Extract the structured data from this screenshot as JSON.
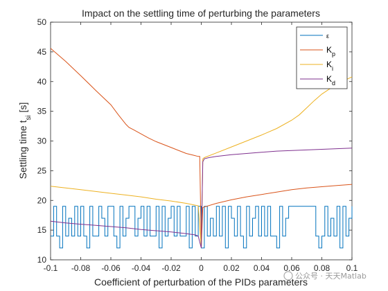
{
  "chart_data": {
    "type": "line",
    "title": "Impact on the settling time of perturbing the parameters",
    "xlabel": "Coefficient of perturbation of the PIDs parameters",
    "ylabel": "Settling time t",
    "ylabel_sub": "si",
    "ylabel_tail": " [s]",
    "xlim": [
      -0.1,
      0.1
    ],
    "ylim": [
      10,
      50
    ],
    "xticks": [
      -0.1,
      -0.08,
      -0.06,
      -0.04,
      -0.02,
      0,
      0.02,
      0.04,
      0.06,
      0.08,
      0.1
    ],
    "xtick_labels": [
      "-0.1",
      "-0.08",
      "-0.06",
      "-0.04",
      "-0.02",
      "0",
      "0.02",
      "0.04",
      "0.06",
      "0.08",
      "0.1"
    ],
    "yticks": [
      10,
      15,
      20,
      25,
      30,
      35,
      40,
      45,
      50
    ],
    "ytick_labels": [
      "10",
      "15",
      "20",
      "25",
      "30",
      "35",
      "40",
      "45",
      "50"
    ],
    "grid": false,
    "legend_position": "top-right",
    "series": [
      {
        "name": "ε",
        "color": "#0072BD",
        "x": [
          -0.1,
          -0.098,
          -0.096,
          -0.094,
          -0.092,
          -0.09,
          -0.088,
          -0.086,
          -0.084,
          -0.082,
          -0.08,
          -0.078,
          -0.076,
          -0.074,
          -0.072,
          -0.07,
          -0.068,
          -0.066,
          -0.064,
          -0.062,
          -0.06,
          -0.058,
          -0.056,
          -0.054,
          -0.052,
          -0.05,
          -0.048,
          -0.046,
          -0.044,
          -0.042,
          -0.04,
          -0.038,
          -0.036,
          -0.034,
          -0.032,
          -0.03,
          -0.028,
          -0.026,
          -0.024,
          -0.022,
          -0.02,
          -0.018,
          -0.016,
          -0.014,
          -0.012,
          -0.01,
          -0.008,
          -0.006,
          -0.004,
          -0.002,
          0,
          0.002,
          0.004,
          0.006,
          0.008,
          0.01,
          0.012,
          0.014,
          0.016,
          0.018,
          0.02,
          0.022,
          0.024,
          0.026,
          0.028,
          0.03,
          0.032,
          0.034,
          0.036,
          0.038,
          0.04,
          0.042,
          0.044,
          0.046,
          0.048,
          0.05,
          0.052,
          0.054,
          0.056,
          0.058,
          0.06,
          0.062,
          0.064,
          0.066,
          0.068,
          0.07,
          0.072,
          0.074,
          0.076,
          0.078,
          0.08,
          0.082,
          0.084,
          0.086,
          0.088,
          0.09,
          0.092,
          0.094,
          0.096,
          0.098,
          0.1
        ],
        "y": [
          14,
          19,
          14,
          12,
          19,
          14,
          17,
          14,
          19,
          14,
          19,
          14,
          12,
          19,
          14,
          14,
          19,
          17,
          14,
          19,
          19,
          14,
          12,
          19,
          14,
          17,
          19,
          19,
          14,
          17,
          19,
          14,
          19,
          14,
          14,
          19,
          12,
          19,
          14,
          17,
          19,
          14,
          19,
          14,
          14,
          19,
          12,
          19,
          14,
          19,
          12,
          19,
          14,
          17,
          14,
          19,
          14,
          19,
          12,
          19,
          17,
          14,
          19,
          14,
          12,
          19,
          14,
          17,
          19,
          14,
          19,
          14,
          19,
          14,
          14,
          12,
          19,
          14,
          17,
          19,
          19,
          19,
          19,
          19,
          19,
          19,
          19,
          19,
          14,
          12,
          14,
          19,
          14,
          17,
          14,
          19,
          12,
          19,
          14,
          17,
          19
        ]
      },
      {
        "name": "K_p",
        "color": "#D95319",
        "x": [
          -0.1,
          -0.09,
          -0.08,
          -0.07,
          -0.06,
          -0.055,
          -0.05,
          -0.048,
          -0.045,
          -0.04,
          -0.035,
          -0.03,
          -0.02,
          -0.01,
          -0.005,
          -0.002,
          -0.001,
          0,
          0.001,
          0.002,
          0.01,
          0.02,
          0.03,
          0.04,
          0.05,
          0.06,
          0.07,
          0.08,
          0.09,
          0.1
        ],
        "y": [
          45.6,
          43.4,
          41.0,
          38.5,
          36.1,
          34.4,
          32.8,
          32.3,
          31.9,
          31.2,
          30.5,
          29.9,
          28.9,
          27.9,
          27.6,
          27.4,
          27.4,
          12.0,
          18.8,
          18.9,
          19.5,
          20.1,
          20.6,
          21.0,
          21.4,
          21.8,
          22.1,
          22.3,
          22.5,
          22.7
        ]
      },
      {
        "name": "K_i",
        "color": "#EDB120",
        "x": [
          -0.1,
          -0.09,
          -0.08,
          -0.07,
          -0.06,
          -0.05,
          -0.04,
          -0.03,
          -0.02,
          -0.01,
          -0.002,
          0,
          0.001,
          0.002,
          0.01,
          0.02,
          0.03,
          0.04,
          0.05,
          0.06,
          0.065,
          0.07,
          0.075,
          0.08,
          0.09,
          0.1
        ],
        "y": [
          22.4,
          22.1,
          21.8,
          21.5,
          21.2,
          20.9,
          20.6,
          20.2,
          19.9,
          19.5,
          19.1,
          12.0,
          27.0,
          27.2,
          28.0,
          29.0,
          30.0,
          31.0,
          32.1,
          33.5,
          34.4,
          35.6,
          36.8,
          37.9,
          39.6,
          40.8
        ]
      },
      {
        "name": "K_d",
        "color": "#7E2F8E",
        "x": [
          -0.1,
          -0.09,
          -0.08,
          -0.07,
          -0.06,
          -0.05,
          -0.04,
          -0.03,
          -0.02,
          -0.01,
          -0.004,
          -0.002,
          0,
          0.001,
          0.002,
          0.005,
          0.01,
          0.02,
          0.03,
          0.04,
          0.05,
          0.06,
          0.07,
          0.08,
          0.09,
          0.1
        ],
        "y": [
          16.5,
          16.2,
          16.0,
          15.8,
          15.6,
          15.4,
          15.1,
          14.9,
          14.7,
          14.4,
          14.2,
          14.0,
          12.0,
          26.5,
          27.0,
          27.2,
          27.4,
          27.7,
          27.9,
          28.1,
          28.3,
          28.4,
          28.5,
          28.6,
          28.7,
          28.8
        ]
      }
    ]
  },
  "legend": {
    "items": [
      {
        "base": "ε",
        "sub": ""
      },
      {
        "base": "K",
        "sub": "p"
      },
      {
        "base": "K",
        "sub": "i"
      },
      {
        "base": "K",
        "sub": "d"
      }
    ]
  },
  "watermark": {
    "text": "公众号 · 天天Matlab"
  }
}
